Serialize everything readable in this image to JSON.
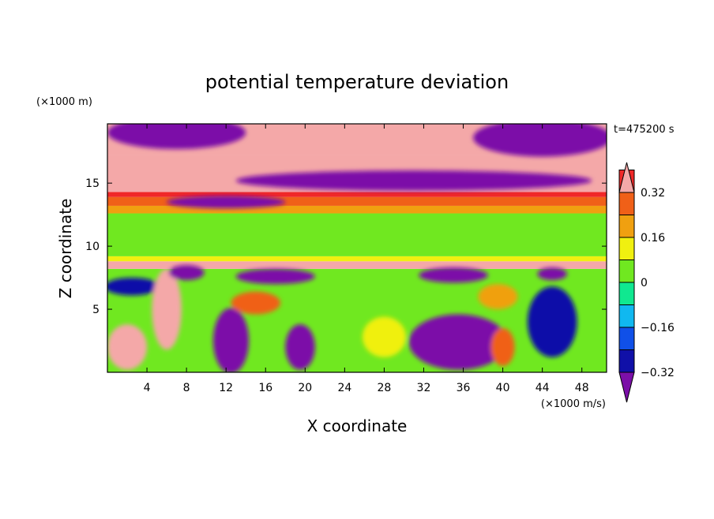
{
  "chart_data": {
    "type": "heatmap",
    "title": "potential temperature deviation",
    "xlabel": "X coordinate",
    "ylabel": "Z coordinate",
    "x_unit": "(×1000 m/s)",
    "y_unit": "(×1000 m)",
    "time_label": "t=475200 s",
    "xlim": [
      0,
      50.5
    ],
    "ylim": [
      0,
      19.7
    ],
    "x_ticks": [
      4,
      8,
      12,
      16,
      20,
      24,
      28,
      32,
      36,
      40,
      44,
      48
    ],
    "x_tick_labels": [
      "4",
      "8",
      "12",
      "16",
      "20",
      "24",
      "28",
      "32",
      "36",
      "40",
      "44",
      "48"
    ],
    "y_ticks": [
      5,
      10,
      15
    ],
    "y_tick_labels": [
      "5",
      "10",
      "15"
    ],
    "colorbar": {
      "levels": [
        -0.4,
        -0.32,
        -0.24,
        -0.16,
        -0.08,
        0,
        0.08,
        0.16,
        0.24,
        0.32,
        0.4
      ],
      "tick_values": [
        -0.32,
        -0.16,
        0,
        0.16,
        0.32
      ],
      "tick_labels": [
        "−0.32",
        "−0.16",
        "0",
        "0.16",
        "0.32"
      ],
      "colors": [
        "#7b0fa8",
        "#1010a8",
        "#1050e8",
        "#10b8f0",
        "#10e890",
        "#70e820",
        "#f0f010",
        "#f0a010",
        "#f06018",
        "#f02828",
        "#f4a8a8"
      ],
      "extend": "both"
    },
    "bands": [
      {
        "z_from": 0,
        "z_to": 8.2,
        "value": 0.0
      },
      {
        "z_from": 8.2,
        "z_to": 8.8,
        "value": 0.45
      },
      {
        "z_from": 8.8,
        "z_to": 9.2,
        "value": 0.14
      },
      {
        "z_from": 9.2,
        "z_to": 12.6,
        "value": 0.02
      },
      {
        "z_from": 12.6,
        "z_to": 13.2,
        "value": 0.2
      },
      {
        "z_from": 13.2,
        "z_to": 13.9,
        "value": 0.3
      },
      {
        "z_from": 13.9,
        "z_to": 14.3,
        "value": 0.38
      },
      {
        "z_from": 14.3,
        "z_to": 17.2,
        "value": 0.45
      },
      {
        "z_from": 17.2,
        "z_to": 19.7,
        "value": 0.45
      }
    ],
    "features": [
      {
        "type": "blob",
        "x": 35.5,
        "z": 2.4,
        "rx": 5.0,
        "rz": 2.2,
        "value": -0.45
      },
      {
        "type": "blob",
        "x": 12.5,
        "z": 2.5,
        "rx": 1.8,
        "rz": 2.6,
        "value": -0.45
      },
      {
        "type": "blob",
        "x": 19.5,
        "z": 2.0,
        "rx": 1.5,
        "rz": 1.8,
        "value": -0.38
      },
      {
        "type": "blob",
        "x": 45.0,
        "z": 4.0,
        "rx": 2.5,
        "rz": 2.8,
        "value": -0.3
      },
      {
        "type": "blob",
        "x": 2.5,
        "z": 6.8,
        "rx": 2.8,
        "rz": 0.7,
        "value": -0.3
      },
      {
        "type": "blob",
        "x": 6.0,
        "z": 5.0,
        "rx": 1.5,
        "rz": 3.2,
        "value": 0.45
      },
      {
        "type": "blob",
        "x": 15.0,
        "z": 5.5,
        "rx": 2.5,
        "rz": 0.9,
        "value": 0.3
      },
      {
        "type": "blob",
        "x": 2.0,
        "z": 2.0,
        "rx": 2.0,
        "rz": 1.8,
        "value": 0.45
      },
      {
        "type": "blob",
        "x": 39.5,
        "z": 6.0,
        "rx": 2.0,
        "rz": 1.0,
        "value": 0.2
      },
      {
        "type": "blob",
        "x": 40.0,
        "z": 2.0,
        "rx": 1.2,
        "rz": 1.5,
        "value": 0.3
      },
      {
        "type": "blob",
        "x": 8.0,
        "z": 7.9,
        "rx": 1.8,
        "rz": 0.6,
        "value": -0.45
      },
      {
        "type": "blob",
        "x": 17.0,
        "z": 7.6,
        "rx": 4.0,
        "rz": 0.6,
        "value": -0.45
      },
      {
        "type": "blob",
        "x": 35.0,
        "z": 7.7,
        "rx": 3.5,
        "rz": 0.6,
        "value": -0.45
      },
      {
        "type": "blob",
        "x": 45.0,
        "z": 7.8,
        "rx": 1.5,
        "rz": 0.5,
        "value": -0.45
      },
      {
        "type": "blob",
        "x": 28.0,
        "z": 2.8,
        "rx": 2.2,
        "rz": 1.6,
        "value": 0.08
      },
      {
        "type": "blob",
        "x": 7.0,
        "z": 19.0,
        "rx": 7.0,
        "rz": 1.3,
        "value": -0.45
      },
      {
        "type": "blob",
        "x": 44.0,
        "z": 18.6,
        "rx": 7.0,
        "rz": 1.5,
        "value": -0.45
      },
      {
        "type": "blob",
        "x": 31.0,
        "z": 15.2,
        "rx": 18.0,
        "rz": 0.8,
        "value": -0.42
      },
      {
        "type": "blob",
        "x": 12.0,
        "z": 13.5,
        "rx": 6.0,
        "rz": 0.5,
        "value": -0.45
      }
    ]
  }
}
